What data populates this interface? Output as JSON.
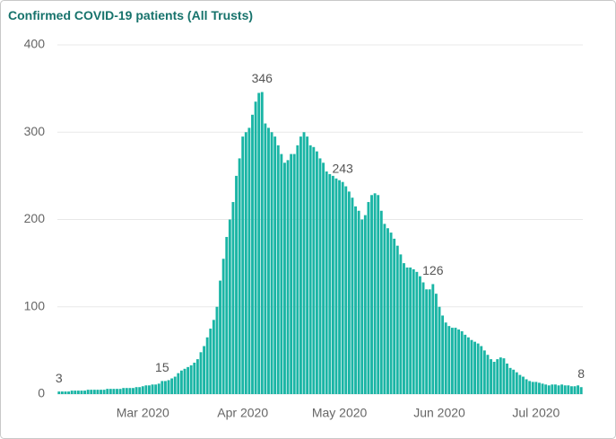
{
  "chart_data": {
    "type": "bar",
    "title": "Confirmed COVID-19 patients (All Trusts)",
    "categories": [
      null,
      null,
      null,
      null,
      null,
      null,
      null,
      null,
      null,
      null,
      null,
      null,
      null,
      null,
      null,
      null,
      null,
      null,
      null,
      null,
      null,
      null,
      null,
      null,
      null,
      null,
      "Mar 2020",
      null,
      null,
      null,
      null,
      null,
      null,
      null,
      null,
      null,
      null,
      null,
      null,
      null,
      null,
      null,
      null,
      null,
      null,
      null,
      null,
      null,
      null,
      null,
      null,
      null,
      null,
      null,
      null,
      null,
      null,
      "Apr 2020",
      null,
      null,
      null,
      null,
      null,
      null,
      null,
      null,
      null,
      null,
      null,
      null,
      null,
      null,
      null,
      null,
      null,
      null,
      null,
      null,
      null,
      null,
      null,
      null,
      null,
      null,
      null,
      null,
      null,
      "May 2020",
      null,
      null,
      null,
      null,
      null,
      null,
      null,
      null,
      null,
      null,
      null,
      null,
      null,
      null,
      null,
      null,
      null,
      null,
      null,
      null,
      null,
      null,
      null,
      null,
      null,
      null,
      null,
      null,
      null,
      null,
      "Jun 2020",
      null,
      null,
      null,
      null,
      null,
      null,
      null,
      null,
      null,
      null,
      null,
      null,
      null,
      null,
      null,
      null,
      null,
      null,
      null,
      null,
      null,
      null,
      null,
      null,
      null,
      null,
      null,
      null,
      null,
      "Jul 2020",
      null,
      null,
      null,
      null,
      null,
      null,
      null,
      null,
      null,
      null,
      null,
      null,
      null,
      null
    ],
    "values": [
      3,
      3,
      3,
      3,
      4,
      4,
      4,
      4,
      4,
      5,
      5,
      5,
      5,
      5,
      5,
      6,
      6,
      6,
      6,
      6,
      7,
      7,
      7,
      7,
      8,
      8,
      9,
      10,
      10,
      11,
      11,
      12,
      15,
      15,
      16,
      18,
      20,
      24,
      27,
      29,
      31,
      33,
      36,
      40,
      48,
      55,
      65,
      75,
      85,
      100,
      130,
      155,
      180,
      200,
      220,
      250,
      270,
      295,
      300,
      305,
      320,
      335,
      345,
      346,
      310,
      305,
      300,
      295,
      285,
      275,
      265,
      268,
      275,
      275,
      285,
      295,
      300,
      295,
      285,
      283,
      278,
      270,
      265,
      255,
      252,
      250,
      247,
      245,
      243,
      238,
      232,
      225,
      215,
      210,
      200,
      205,
      220,
      228,
      230,
      228,
      210,
      195,
      190,
      185,
      178,
      170,
      160,
      150,
      145,
      145,
      143,
      140,
      135,
      128,
      120,
      120,
      126,
      115,
      100,
      90,
      82,
      78,
      76,
      76,
      74,
      72,
      68,
      65,
      62,
      60,
      58,
      55,
      50,
      45,
      40,
      37,
      40,
      42,
      41,
      35,
      30,
      28,
      25,
      22,
      20,
      17,
      15,
      14,
      14,
      13,
      12,
      11,
      10,
      11,
      11,
      10,
      11,
      10,
      10,
      9,
      9,
      10,
      8
    ],
    "value_labels": [
      "3",
      null,
      null,
      null,
      null,
      null,
      null,
      null,
      null,
      null,
      null,
      null,
      null,
      null,
      null,
      null,
      null,
      null,
      null,
      null,
      null,
      null,
      null,
      null,
      null,
      null,
      null,
      null,
      null,
      null,
      null,
      null,
      "15",
      null,
      null,
      null,
      null,
      null,
      null,
      null,
      null,
      null,
      null,
      null,
      null,
      null,
      null,
      null,
      null,
      null,
      null,
      null,
      null,
      null,
      null,
      null,
      null,
      null,
      null,
      null,
      null,
      null,
      null,
      "346",
      null,
      null,
      null,
      null,
      null,
      null,
      null,
      null,
      null,
      null,
      null,
      null,
      null,
      null,
      null,
      null,
      null,
      null,
      null,
      null,
      null,
      null,
      null,
      null,
      "243",
      null,
      null,
      null,
      null,
      null,
      null,
      null,
      null,
      null,
      null,
      null,
      null,
      null,
      null,
      null,
      null,
      null,
      null,
      null,
      null,
      null,
      null,
      null,
      null,
      null,
      null,
      null,
      "126",
      null,
      null,
      null,
      null,
      null,
      null,
      null,
      null,
      null,
      null,
      null,
      null,
      null,
      null,
      null,
      null,
      null,
      null,
      null,
      null,
      null,
      null,
      null,
      null,
      null,
      null,
      null,
      null,
      null,
      null,
      null,
      null,
      null,
      null,
      null,
      null,
      null,
      null,
      null,
      null,
      null,
      null,
      null,
      null,
      null,
      "8"
    ],
    "color": "#1ab5a5",
    "ylim": [
      0,
      400
    ],
    "yticks": [
      0,
      100,
      200,
      300,
      400
    ],
    "grid": true
  }
}
